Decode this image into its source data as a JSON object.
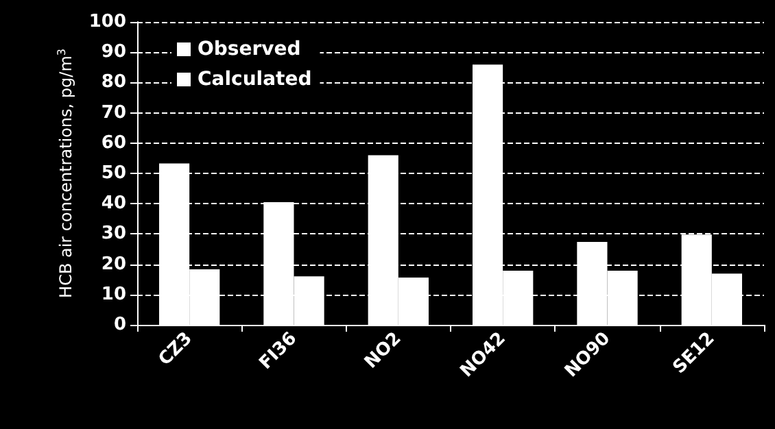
{
  "chart_data": {
    "type": "bar",
    "ylabel": "HCB air concentrations, pg/m$^{3}$",
    "categories": [
      "CZ3",
      "FI36",
      "NO2",
      "NO42",
      "NO90",
      "SE12"
    ],
    "series": [
      {
        "name": "Observed",
        "color": "#ffffff",
        "values": [
          53.3,
          40.5,
          56.0,
          85.9,
          27.4,
          29.8
        ]
      },
      {
        "name": "Calculated",
        "color": "#ffffff",
        "values": [
          18.3,
          16.0,
          15.6,
          17.9,
          17.9,
          16.9
        ]
      }
    ],
    "ylim": [
      0,
      100
    ],
    "yticks": [
      0,
      10,
      20,
      30,
      40,
      50,
      60,
      70,
      80,
      90,
      100
    ],
    "grid": "y",
    "legend": "top left"
  }
}
